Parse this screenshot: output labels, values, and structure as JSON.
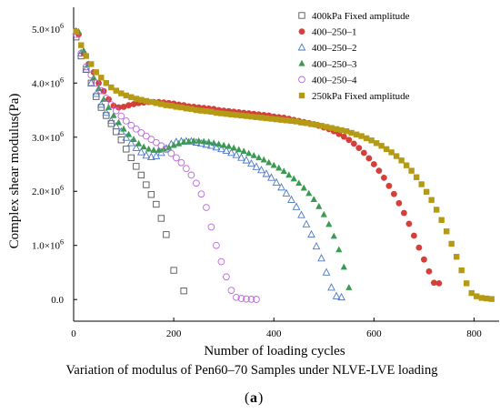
{
  "chart_data": {
    "type": "scatter",
    "title": "",
    "xlabel": "Number of loading cycles",
    "ylabel": "Complex shear modulus(Pa)",
    "caption": "Variation of modulus of Pen60–70 Samples under NLVE-LVE loading",
    "panel_label": "a",
    "xlim": [
      0,
      850
    ],
    "ylim": [
      -400000,
      5400000
    ],
    "x_ticks": [
      0,
      200,
      400,
      600,
      800
    ],
    "x_tick_labels": [
      "0",
      "200",
      "400",
      "600",
      "800"
    ],
    "y_ticks": [
      0,
      1000000,
      2000000,
      3000000,
      4000000,
      5000000
    ],
    "y_tick_mantissa": [
      "0.0",
      "1.0×10",
      "2.0×10",
      "3.0×10",
      "4.0×10",
      "5.0×10"
    ],
    "y_tick_exponent": [
      "",
      "6",
      "6",
      "6",
      "6",
      "6"
    ],
    "grid": false,
    "legend_position": "top-right",
    "series": [
      {
        "name": "400kPa Fixed amplitude",
        "marker": "square-open",
        "color": "#555555",
        "x": [
          5,
          15,
          25,
          35,
          45,
          55,
          65,
          75,
          85,
          95,
          105,
          115,
          125,
          135,
          145,
          155,
          165,
          175,
          185,
          200,
          220
        ],
        "y": [
          4850000,
          4500000,
          4250000,
          4000000,
          3750000,
          3550000,
          3400000,
          3250000,
          3100000,
          2950000,
          2780000,
          2620000,
          2460000,
          2300000,
          2120000,
          1940000,
          1760000,
          1500000,
          1200000,
          540000,
          160000
        ]
      },
      {
        "name": "400–250–1",
        "marker": "circle-filled",
        "color": "#d43f3a",
        "x": [
          10,
          20,
          30,
          40,
          50,
          60,
          70,
          80,
          90,
          100,
          110,
          120,
          130,
          140,
          150,
          160,
          170,
          180,
          190,
          200,
          210,
          220,
          230,
          240,
          250,
          260,
          270,
          280,
          290,
          300,
          310,
          320,
          330,
          340,
          350,
          360,
          370,
          380,
          390,
          400,
          410,
          420,
          430,
          440,
          450,
          460,
          470,
          480,
          490,
          500,
          510,
          520,
          530,
          540,
          550,
          560,
          570,
          580,
          590,
          600,
          610,
          620,
          630,
          640,
          650,
          660,
          670,
          680,
          690,
          700,
          710,
          720,
          730
        ],
        "y": [
          4900000,
          4550000,
          4350000,
          4200000,
          4000000,
          3850000,
          3700000,
          3580000,
          3550000,
          3560000,
          3590000,
          3610000,
          3630000,
          3640000,
          3650000,
          3650000,
          3650000,
          3640000,
          3630000,
          3620000,
          3600000,
          3590000,
          3570000,
          3560000,
          3550000,
          3540000,
          3530000,
          3520000,
          3500000,
          3490000,
          3480000,
          3470000,
          3460000,
          3450000,
          3440000,
          3430000,
          3420000,
          3410000,
          3400000,
          3380000,
          3370000,
          3360000,
          3340000,
          3320000,
          3300000,
          3280000,
          3260000,
          3240000,
          3210000,
          3180000,
          3150000,
          3110000,
          3060000,
          3010000,
          2950000,
          2880000,
          2800000,
          2710000,
          2610000,
          2500000,
          2380000,
          2250000,
          2100000,
          1950000,
          1780000,
          1600000,
          1400000,
          1180000,
          960000,
          740000,
          520000,
          310000,
          300000
        ]
      },
      {
        "name": "400–250–2",
        "marker": "triangle-open",
        "color": "#4a78c8",
        "x": [
          5,
          15,
          25,
          35,
          45,
          55,
          65,
          75,
          85,
          95,
          105,
          115,
          125,
          135,
          145,
          155,
          165,
          175,
          185,
          195,
          205,
          215,
          225,
          235,
          245,
          255,
          265,
          275,
          285,
          295,
          305,
          315,
          325,
          335,
          345,
          355,
          365,
          375,
          385,
          395,
          405,
          415,
          425,
          435,
          445,
          455,
          465,
          475,
          485,
          495,
          505,
          515,
          525,
          535
        ],
        "y": [
          4950000,
          4550000,
          4250000,
          4000000,
          3800000,
          3600000,
          3450000,
          3300000,
          3200000,
          3100000,
          2990000,
          2890000,
          2800000,
          2720000,
          2660000,
          2630000,
          2650000,
          2710000,
          2790000,
          2870000,
          2910000,
          2920000,
          2920000,
          2920000,
          2900000,
          2880000,
          2860000,
          2840000,
          2810000,
          2780000,
          2750000,
          2710000,
          2670000,
          2620000,
          2570000,
          2510000,
          2450000,
          2390000,
          2320000,
          2250000,
          2160000,
          2070000,
          1960000,
          1840000,
          1710000,
          1560000,
          1390000,
          1200000,
          980000,
          760000,
          500000,
          220000,
          60000,
          40000
        ]
      },
      {
        "name": "400–250–3",
        "marker": "triangle-filled",
        "color": "#3a9a52",
        "x": [
          10,
          20,
          30,
          40,
          50,
          60,
          70,
          80,
          90,
          100,
          110,
          120,
          130,
          140,
          150,
          160,
          170,
          180,
          190,
          200,
          210,
          220,
          230,
          240,
          250,
          260,
          270,
          280,
          290,
          300,
          310,
          320,
          330,
          340,
          350,
          360,
          370,
          380,
          390,
          400,
          410,
          420,
          430,
          440,
          450,
          460,
          470,
          480,
          490,
          500,
          510,
          520,
          530,
          540,
          550
        ],
        "y": [
          4950000,
          4600000,
          4350000,
          4100000,
          3900000,
          3700000,
          3550000,
          3400000,
          3270000,
          3150000,
          3050000,
          2960000,
          2880000,
          2820000,
          2780000,
          2760000,
          2760000,
          2780000,
          2810000,
          2850000,
          2880000,
          2910000,
          2920000,
          2930000,
          2930000,
          2920000,
          2910000,
          2890000,
          2870000,
          2850000,
          2830000,
          2800000,
          2770000,
          2740000,
          2700000,
          2660000,
          2620000,
          2580000,
          2530000,
          2480000,
          2430000,
          2370000,
          2300000,
          2230000,
          2150000,
          2060000,
          1960000,
          1850000,
          1720000,
          1570000,
          1390000,
          1170000,
          920000,
          600000,
          220000
        ]
      },
      {
        "name": "400–250–4",
        "marker": "circle-open",
        "color": "#b86ad9",
        "x": [
          5,
          15,
          25,
          35,
          45,
          55,
          65,
          75,
          85,
          95,
          105,
          115,
          125,
          135,
          145,
          155,
          165,
          175,
          185,
          195,
          205,
          215,
          225,
          235,
          245,
          255,
          265,
          275,
          285,
          295,
          305,
          315,
          325,
          335,
          345,
          355,
          365
        ],
        "y": [
          4900000,
          4550000,
          4300000,
          4150000,
          4000000,
          3860000,
          3720000,
          3600000,
          3490000,
          3390000,
          3300000,
          3220000,
          3150000,
          3080000,
          3020000,
          2960000,
          2900000,
          2840000,
          2770000,
          2700000,
          2620000,
          2530000,
          2420000,
          2300000,
          2150000,
          1950000,
          1700000,
          1340000,
          1000000,
          700000,
          420000,
          170000,
          40000,
          20000,
          10000,
          5000,
          3000
        ]
      },
      {
        "name": "250kPa Fixed amplitude",
        "marker": "square-filled",
        "color": "#b59b15",
        "x": [
          5,
          15,
          25,
          35,
          45,
          55,
          65,
          75,
          85,
          95,
          105,
          115,
          125,
          135,
          145,
          155,
          165,
          175,
          185,
          195,
          205,
          215,
          225,
          235,
          245,
          255,
          265,
          275,
          285,
          295,
          305,
          315,
          325,
          335,
          345,
          355,
          365,
          375,
          385,
          395,
          405,
          415,
          425,
          435,
          445,
          455,
          465,
          475,
          485,
          495,
          505,
          515,
          525,
          535,
          545,
          555,
          565,
          575,
          585,
          595,
          605,
          615,
          625,
          635,
          645,
          655,
          665,
          675,
          685,
          695,
          705,
          715,
          725,
          735,
          745,
          755,
          765,
          775,
          785,
          795,
          805,
          815,
          825,
          835
        ],
        "y": [
          4950000,
          4700000,
          4500000,
          4350000,
          4200000,
          4100000,
          4000000,
          3920000,
          3860000,
          3810000,
          3770000,
          3740000,
          3710000,
          3690000,
          3670000,
          3650000,
          3630000,
          3610000,
          3590000,
          3580000,
          3560000,
          3550000,
          3530000,
          3520000,
          3500000,
          3490000,
          3480000,
          3470000,
          3450000,
          3440000,
          3430000,
          3420000,
          3410000,
          3400000,
          3390000,
          3380000,
          3370000,
          3360000,
          3350000,
          3340000,
          3330000,
          3320000,
          3310000,
          3300000,
          3290000,
          3270000,
          3260000,
          3240000,
          3230000,
          3210000,
          3190000,
          3170000,
          3150000,
          3130000,
          3110000,
          3080000,
          3050000,
          3020000,
          2980000,
          2940000,
          2890000,
          2840000,
          2780000,
          2720000,
          2650000,
          2570000,
          2480000,
          2380000,
          2260000,
          2130000,
          1990000,
          1840000,
          1660000,
          1470000,
          1260000,
          1030000,
          790000,
          540000,
          300000,
          120000,
          60000,
          30000,
          20000,
          10000
        ]
      }
    ]
  }
}
